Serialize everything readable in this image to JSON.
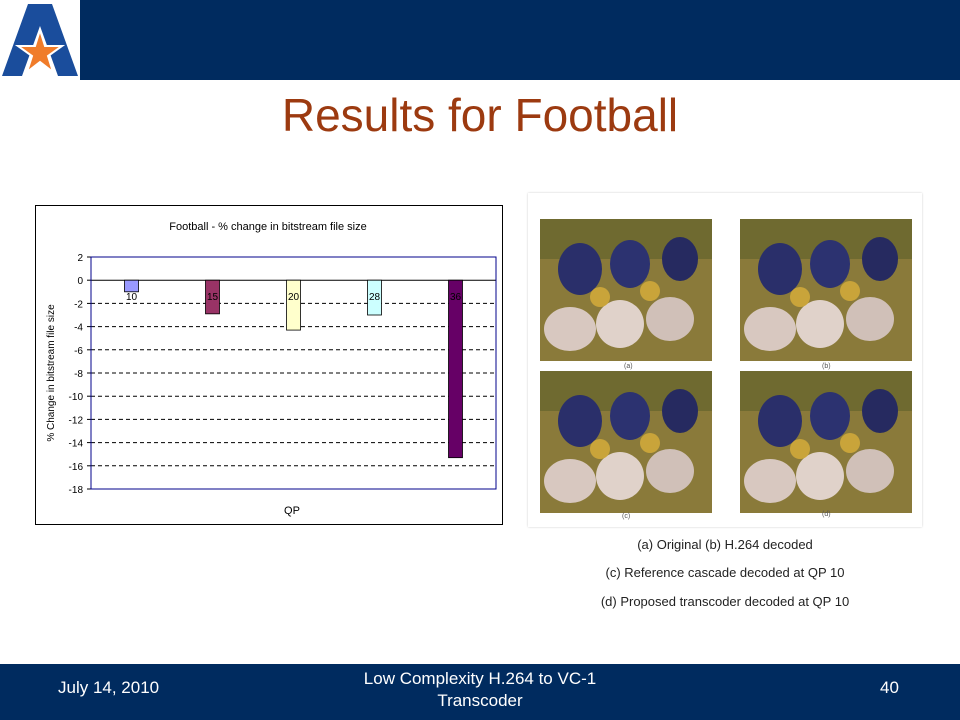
{
  "slide": {
    "title": "Results for Football"
  },
  "chart_data": {
    "type": "bar",
    "title": "Football - % change in bitstream file size",
    "xlabel": "QP",
    "ylabel": "% Change in bitstream file size",
    "categories": [
      "10",
      "15",
      "20",
      "28",
      "36"
    ],
    "values": [
      -1.0,
      -2.9,
      -4.3,
      -3.0,
      -15.3
    ],
    "colors": [
      "#9999ff",
      "#993366",
      "#ffffcc",
      "#ccffff",
      "#660066"
    ],
    "ylim": [
      -18,
      2
    ],
    "yticks": [
      "2",
      "0",
      "-2",
      "-4",
      "-6",
      "-8",
      "-10",
      "-12",
      "-14",
      "-16",
      "-18"
    ],
    "grid": true
  },
  "figure": {
    "panel_labels": [
      "(a)",
      "(b)",
      "(c)",
      "(d)"
    ]
  },
  "captions": [
    "(a) Original (b) H.264 decoded",
    "(c) Reference cascade decoded at QP 10",
    "(d) Proposed transcoder decoded at QP 10"
  ],
  "footer": {
    "date": "July 14, 2010",
    "center": "Low Complexity H.264 to VC-1 Transcoder",
    "page": "40"
  },
  "colors": {
    "bar": "#002b5f",
    "title": "#9c3a10",
    "logo_blue": "#1a4d9c",
    "logo_orange": "#f07c2a"
  }
}
